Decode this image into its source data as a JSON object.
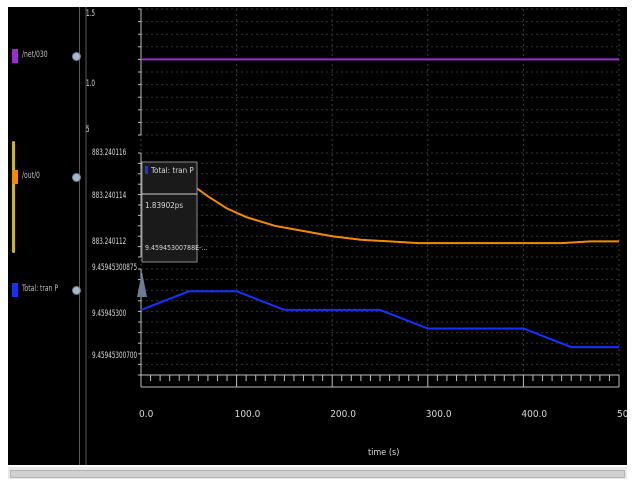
{
  "panel": {
    "signals": [
      {
        "name": "/net/030",
        "color": "#9c2bd6",
        "eye": "eye-icon"
      },
      {
        "name": "/out/0",
        "color": "#f58a00",
        "eye": "eye-icon"
      },
      {
        "name": "Total: tran P",
        "color": "#1232ff",
        "eye": "eye-icon"
      }
    ]
  },
  "strips": [
    {
      "top_label": "1.5",
      "mid_label": "1.0",
      "bottom_label": "5"
    },
    {
      "labels": [
        "883.240116",
        "883.240114",
        "883.240112"
      ]
    },
    {
      "labels": [
        "9.45945300875",
        "9.45945300",
        "9.45945300700"
      ]
    }
  ],
  "tooltip": {
    "title": "Total: tran P",
    "time": "1.83902ps",
    "value": "9.45945300788E-..."
  },
  "xaxis": {
    "ticks": [
      "0.0",
      "100.0",
      "200.0",
      "300.0",
      "400.0",
      "500.0"
    ],
    "label": "time (s)"
  },
  "chart_data": [
    {
      "type": "line",
      "series": [
        {
          "name": "/net/030",
          "color": "#9c2bd6",
          "x": [
            0,
            500
          ],
          "y": [
            1.1,
            1.1
          ]
        }
      ],
      "xlim": [
        0,
        500
      ]
    },
    {
      "type": "line",
      "series": [
        {
          "name": "/out/0",
          "color": "#f58a00",
          "x": [
            0,
            10,
            25,
            40,
            55,
            70,
            90,
            110,
            140,
            170,
            200,
            230,
            260,
            290,
            320,
            350,
            380,
            410,
            440,
            470,
            500
          ],
          "y": [
            883.2401155,
            883.2401157,
            883.2401156,
            883.2401152,
            883.2401146,
            883.240114,
            883.2401133,
            883.2401128,
            883.2401123,
            883.240112,
            883.2401117,
            883.2401115,
            883.2401114,
            883.2401113,
            883.2401113,
            883.2401113,
            883.2401113,
            883.2401113,
            883.2401113,
            883.2401114,
            883.2401114
          ]
        }
      ],
      "xlim": [
        0,
        500
      ]
    },
    {
      "type": "line",
      "series": [
        {
          "name": "Total: tran P",
          "color": "#1232ff",
          "x": [
            0,
            50,
            100,
            150,
            200,
            250,
            300,
            350,
            400,
            450,
            500
          ],
          "y": [
            9.459453007,
            9.459453008,
            9.459453008,
            9.459453007,
            9.459453007,
            9.459453007,
            9.459453006,
            9.459453006,
            9.459453006,
            9.459453005,
            9.459453005
          ]
        }
      ],
      "xlim": [
        0,
        500
      ]
    }
  ]
}
